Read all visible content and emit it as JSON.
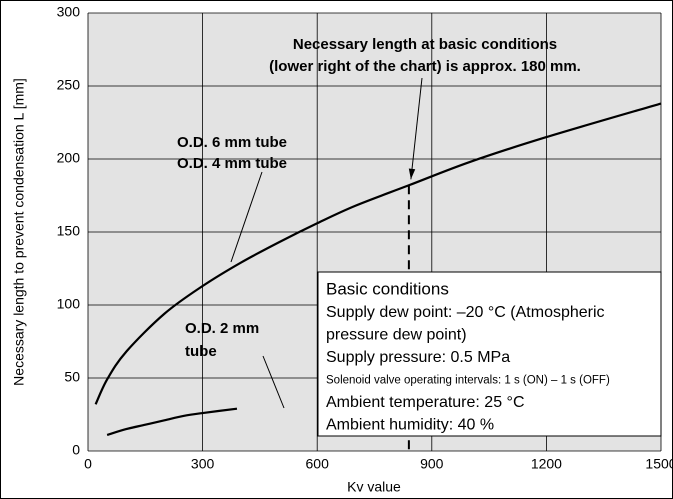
{
  "chart_data": {
    "type": "line",
    "x_label": "Kv value",
    "y_label": "Necessary length to prevent condensation L [mm]",
    "xlim": [
      0,
      1500
    ],
    "xticks": [
      0,
      300,
      600,
      900,
      1200,
      1500
    ],
    "ylim": [
      0,
      300
    ],
    "yticks": [
      0,
      50,
      100,
      150,
      200,
      250,
      300
    ],
    "grid": true,
    "series": [
      {
        "name": "O.D. 6 mm tube / O.D. 4 mm tube",
        "color": "#000000",
        "x": [
          20,
          50,
          100,
          200,
          300,
          400,
          500,
          600,
          700,
          840,
          1000,
          1200,
          1500
        ],
        "values": [
          32,
          49,
          68,
          94,
          113,
          129,
          143,
          156,
          168,
          182,
          198,
          215,
          238
        ]
      },
      {
        "name": "O.D. 2 mm tube",
        "color": "#000000",
        "x": [
          50,
          100,
          150,
          200,
          250,
          300,
          390
        ],
        "values": [
          11,
          15,
          18,
          21,
          24,
          26,
          29
        ]
      }
    ],
    "marker": {
      "x": 840,
      "y": 182
    },
    "annotations": [
      "Necessary length at basic conditions",
      "(lower right of the chart) is approx. 180 mm.",
      "O.D. 6 mm tube",
      "O.D. 4 mm tube",
      "O.D. 2 mm",
      "tube"
    ],
    "conditions_box": {
      "title": "Basic conditions",
      "lines": [
        "Supply dew point: –20 °C (Atmospheric",
        "pressure dew point)",
        "Supply pressure: 0.5 MPa",
        "Solenoid valve operating intervals: 1 s (ON) – 1 s (OFF)",
        "Ambient temperature: 25 °C",
        "Ambient humidity: 40 %"
      ]
    }
  }
}
